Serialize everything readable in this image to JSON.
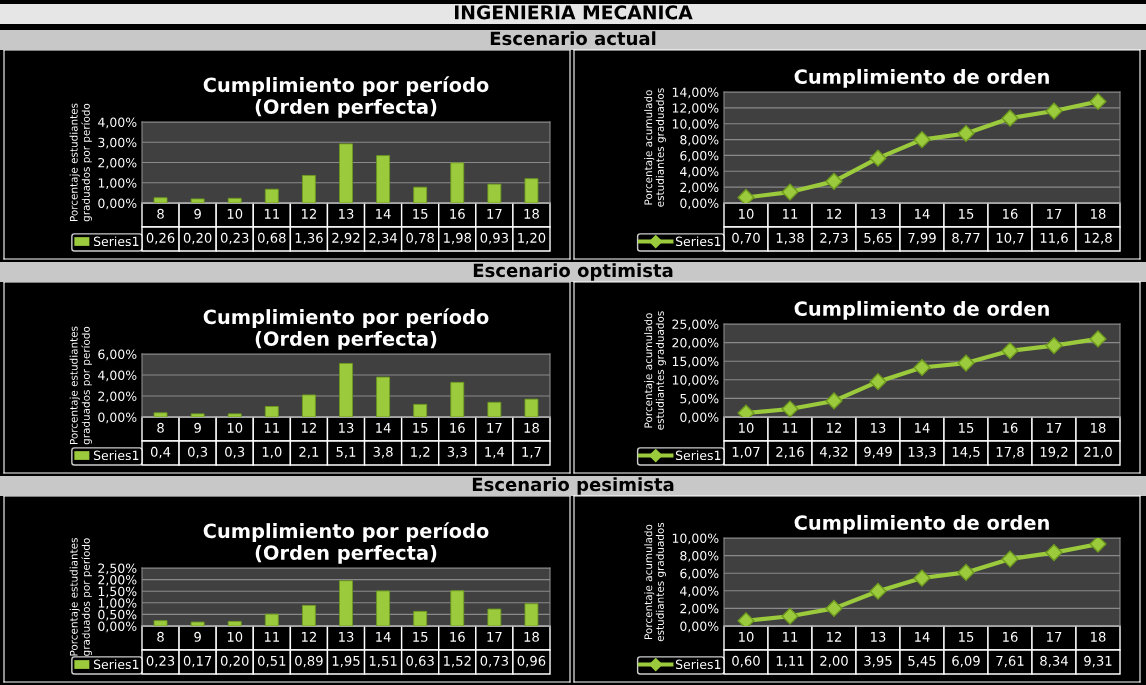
{
  "chart_data": [
    {
      "type": "bar",
      "title": "Cumplimiento por período\n(Orden perfecta)",
      "ylabel": "Porcentaje estudiantes\ngraduados por período",
      "annotations": [
        "INGENIERÍA MECÁNICA",
        "Escenario actual"
      ],
      "categories": [
        "8",
        "9",
        "10",
        "11",
        "12",
        "13",
        "14",
        "15",
        "16",
        "17",
        "18"
      ],
      "series": [
        {
          "name": "Series1",
          "color": "#9bcb3c",
          "values": [
            0.26,
            0.2,
            0.23,
            0.68,
            1.36,
            2.92,
            2.34,
            0.78,
            1.98,
            0.93,
            1.2
          ],
          "value_labels": [
            "0,26",
            "0,20",
            "0,23",
            "0,68",
            "1,36",
            "2,92",
            "2,34",
            "0,78",
            "1,98",
            "0,93",
            "1,20"
          ]
        }
      ],
      "ylim": [
        0,
        4
      ],
      "yticks": [
        {
          "value": 0,
          "label": "0,00%"
        },
        {
          "value": 1,
          "label": "1,00%"
        },
        {
          "value": 2,
          "label": "2,00%"
        },
        {
          "value": 3,
          "label": "3,00%"
        },
        {
          "value": 4,
          "label": "4,00%"
        }
      ],
      "grid": "y",
      "legend": "bottom"
    },
    {
      "type": "line",
      "title": "Cumplimiento de orden",
      "ylabel": "Porcentaje acumulado\nestudiantes graduados",
      "categories": [
        "10",
        "11",
        "12",
        "13",
        "14",
        "15",
        "16",
        "17",
        "18"
      ],
      "series": [
        {
          "name": "Series1",
          "color": "#9bcb3c",
          "values": [
            0.7,
            1.38,
            2.73,
            5.65,
            7.99,
            8.77,
            10.7,
            11.6,
            12.8
          ],
          "value_labels": [
            "0,70",
            "1,38",
            "2,73",
            "5,65",
            "7,99",
            "8,77",
            "10,7",
            "11,6",
            "12,8"
          ]
        }
      ],
      "ylim": [
        0,
        14
      ],
      "yticks": [
        {
          "value": 0,
          "label": "0,00%"
        },
        {
          "value": 2,
          "label": "2,00%"
        },
        {
          "value": 4,
          "label": "4,00%"
        },
        {
          "value": 6,
          "label": "6,00%"
        },
        {
          "value": 8,
          "label": "8,00%"
        },
        {
          "value": 10,
          "label": "10,00%"
        },
        {
          "value": 12,
          "label": "12,00%"
        },
        {
          "value": 14,
          "label": "14,00%"
        }
      ],
      "grid": "y",
      "legend": "bottom",
      "marker": "diamond",
      "line_style": "solid"
    },
    {
      "type": "bar",
      "title": "Cumplimiento por período\n(Orden perfecta)",
      "ylabel": "Porcentaje estudiantes\ngraduados por período",
      "annotations": [
        "Escenario optimista"
      ],
      "categories": [
        "8",
        "9",
        "10",
        "11",
        "12",
        "13",
        "14",
        "15",
        "16",
        "17",
        "18"
      ],
      "series": [
        {
          "name": "Series1",
          "color": "#9bcb3c",
          "values": [
            0.4,
            0.3,
            0.3,
            1.0,
            2.1,
            5.1,
            3.8,
            1.2,
            3.3,
            1.4,
            1.7
          ],
          "value_labels": [
            "0,4",
            "0,3",
            "0,3",
            "1,0",
            "2,1",
            "5,1",
            "3,8",
            "1,2",
            "3,3",
            "1,4",
            "1,7"
          ]
        }
      ],
      "ylim": [
        0,
        6
      ],
      "yticks": [
        {
          "value": 0,
          "label": "0,00%"
        },
        {
          "value": 2,
          "label": "2,00%"
        },
        {
          "value": 4,
          "label": "4,00%"
        },
        {
          "value": 6,
          "label": "6,00%"
        }
      ],
      "grid": "y",
      "legend": "bottom"
    },
    {
      "type": "line",
      "title": "Cumplimiento de orden",
      "ylabel": "Porcentaje acumulado\nestudiantes graduados",
      "categories": [
        "10",
        "11",
        "12",
        "13",
        "14",
        "15",
        "16",
        "17",
        "18"
      ],
      "series": [
        {
          "name": "Series1",
          "color": "#9bcb3c",
          "values": [
            1.07,
            2.16,
            4.32,
            9.49,
            13.3,
            14.5,
            17.8,
            19.2,
            21.0
          ],
          "value_labels": [
            "1,07",
            "2,16",
            "4,32",
            "9,49",
            "13,3",
            "14,5",
            "17,8",
            "19,2",
            "21,0"
          ]
        }
      ],
      "ylim": [
        0,
        25
      ],
      "yticks": [
        {
          "value": 0,
          "label": "0,00%"
        },
        {
          "value": 5,
          "label": "5,00%"
        },
        {
          "value": 10,
          "label": "10,00%"
        },
        {
          "value": 15,
          "label": "15,00%"
        },
        {
          "value": 20,
          "label": "20,00%"
        },
        {
          "value": 25,
          "label": "25,00%"
        }
      ],
      "grid": "y",
      "legend": "bottom",
      "marker": "diamond",
      "line_style": "solid"
    },
    {
      "type": "bar",
      "title": "Cumplimiento por período\n(Orden perfecta)",
      "ylabel": "Porcentaje estudiantes\ngraduados por período",
      "annotations": [
        "Escenario pesimista"
      ],
      "categories": [
        "8",
        "9",
        "10",
        "11",
        "12",
        "13",
        "14",
        "15",
        "16",
        "17",
        "18"
      ],
      "series": [
        {
          "name": "Series1",
          "color": "#9bcb3c",
          "values": [
            0.23,
            0.17,
            0.2,
            0.51,
            0.89,
            1.95,
            1.51,
            0.63,
            1.52,
            0.73,
            0.96
          ],
          "value_labels": [
            "0,23",
            "0,17",
            "0,20",
            "0,51",
            "0,89",
            "1,95",
            "1,51",
            "0,63",
            "1,52",
            "0,73",
            "0,96"
          ]
        }
      ],
      "ylim": [
        0,
        2.5
      ],
      "yticks": [
        {
          "value": 0,
          "label": "0,00%"
        },
        {
          "value": 0.5,
          "label": "0,50%"
        },
        {
          "value": 1,
          "label": "1,00%"
        },
        {
          "value": 1.5,
          "label": "1,50%"
        },
        {
          "value": 2,
          "label": "2,00%"
        },
        {
          "value": 2.5,
          "label": "2,50%"
        }
      ],
      "grid": "y",
      "legend": "bottom"
    },
    {
      "type": "line",
      "title": "Cumplimiento de orden",
      "ylabel": "Porcentaje acumulado\nestudiantes graduados",
      "categories": [
        "10",
        "11",
        "12",
        "13",
        "14",
        "15",
        "16",
        "17",
        "18"
      ],
      "series": [
        {
          "name": "Series1",
          "color": "#9bcb3c",
          "values": [
            0.6,
            1.11,
            2.0,
            3.95,
            5.45,
            6.09,
            7.61,
            8.34,
            9.31
          ],
          "value_labels": [
            "0,60",
            "1,11",
            "2,00",
            "3,95",
            "5,45",
            "6,09",
            "7,61",
            "8,34",
            "9,31"
          ]
        }
      ],
      "ylim": [
        0,
        10
      ],
      "yticks": [
        {
          "value": 0,
          "label": "0,00%"
        },
        {
          "value": 2,
          "label": "2,00%"
        },
        {
          "value": 4,
          "label": "4,00%"
        },
        {
          "value": 6,
          "label": "6,00%"
        },
        {
          "value": 8,
          "label": "8,00%"
        },
        {
          "value": 10,
          "label": "10,00%"
        }
      ],
      "grid": "y",
      "legend": "bottom",
      "marker": "diamond",
      "line_style": "solid"
    }
  ]
}
